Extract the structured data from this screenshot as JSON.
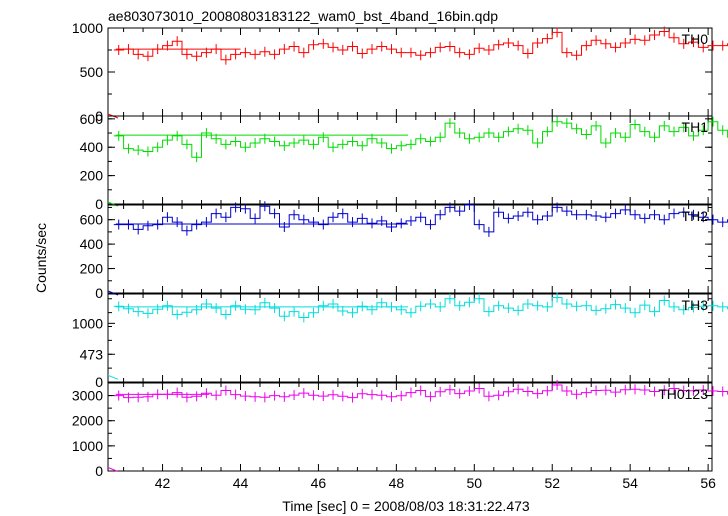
{
  "chart_data": {
    "type": "line",
    "title": "ae803073010_20080803183122_wam0_bst_4band_16bin.qdp",
    "xlabel": "Time [sec] 0 = 2008/08/03 18:31:22.473",
    "ylabel": "Counts/sec",
    "xlim": [
      40.6,
      56.1
    ],
    "x_ticks": [
      42,
      44,
      46,
      48,
      50,
      52,
      54,
      56
    ],
    "bin_width": 0.25,
    "x_start": 40.875,
    "panels": [
      {
        "name": "TH0",
        "color": "#ff0000",
        "ylim": [
          0,
          1000
        ],
        "y_ticks": [
          0,
          500,
          1000
        ],
        "fit_level": 760,
        "fit_x": [
          40.8,
          44.0
        ],
        "values": [
          750,
          760,
          700,
          680,
          760,
          800,
          850,
          700,
          680,
          720,
          760,
          640,
          700,
          720,
          700,
          730,
          700,
          760,
          790,
          720,
          810,
          820,
          780,
          750,
          790,
          710,
          760,
          790,
          760,
          720,
          720,
          690,
          720,
          780,
          790,
          720,
          700,
          770,
          750,
          810,
          830,
          800,
          710,
          830,
          880,
          950,
          720,
          690,
          800,
          860,
          820,
          780,
          830,
          870,
          860,
          920,
          960,
          890,
          820,
          840,
          780,
          800,
          800,
          820,
          820,
          830,
          820,
          840,
          800,
          860,
          880,
          830,
          840,
          780,
          800
        ],
        "point_errors": [
          40.83,
          0.03
        ]
      },
      {
        "name": "TH1",
        "color": "#00dd00",
        "ylim": [
          0,
          620
        ],
        "y_ticks": [
          0,
          200,
          400,
          600
        ],
        "fit_level": 485,
        "fit_x": [
          40.8,
          48.3
        ],
        "values": [
          480,
          390,
          380,
          370,
          400,
          450,
          480,
          420,
          330,
          500,
          460,
          420,
          440,
          400,
          430,
          460,
          440,
          410,
          430,
          450,
          420,
          470,
          400,
          420,
          440,
          410,
          460,
          430,
          390,
          410,
          420,
          460,
          440,
          470,
          570,
          500,
          460,
          470,
          500,
          470,
          510,
          530,
          520,
          430,
          510,
          580,
          570,
          530,
          490,
          550,
          430,
          500,
          470,
          560,
          510,
          470,
          550,
          510,
          540,
          480,
          520,
          580,
          520,
          470,
          360,
          420,
          480,
          450,
          550,
          510,
          580,
          490,
          420,
          480,
          520
        ],
        "point_errors": [
          40.83,
          0.03
        ]
      },
      {
        "name": "TH2",
        "color": "#0000cc",
        "ylim": [
          0,
          720
        ],
        "y_ticks": [
          0,
          200,
          400,
          600
        ],
        "fit_level": 565,
        "fit_x": [
          40.8,
          48.3
        ],
        "values": [
          560,
          560,
          520,
          550,
          560,
          620,
          580,
          510,
          560,
          580,
          650,
          620,
          700,
          690,
          610,
          710,
          650,
          540,
          640,
          600,
          580,
          560,
          620,
          650,
          580,
          610,
          570,
          590,
          540,
          570,
          590,
          620,
          560,
          640,
          700,
          670,
          720,
          560,
          500,
          660,
          610,
          630,
          660,
          600,
          630,
          700,
          670,
          640,
          640,
          630,
          620,
          650,
          680,
          640,
          610,
          640,
          600,
          650,
          660,
          640,
          620,
          600,
          580,
          600,
          560,
          640,
          620,
          570,
          700,
          640,
          610,
          620,
          560,
          640,
          610
        ],
        "point_errors": [
          40.83,
          0.03
        ]
      },
      {
        "name": "TH3",
        "color": "#00dddd",
        "ylim": [
          0,
          1500
        ],
        "y_ticks": [
          0,
          473,
          1000
        ],
        "fit_level": 1280,
        "fit_x": [
          40.8,
          48.3
        ],
        "values": [
          1290,
          1250,
          1200,
          1170,
          1240,
          1300,
          1150,
          1190,
          1230,
          1330,
          1260,
          1150,
          1300,
          1240,
          1230,
          1350,
          1260,
          1120,
          1200,
          1100,
          1180,
          1300,
          1330,
          1210,
          1180,
          1290,
          1230,
          1350,
          1280,
          1230,
          1180,
          1290,
          1330,
          1280,
          1420,
          1300,
          1360,
          1420,
          1200,
          1300,
          1260,
          1220,
          1330,
          1300,
          1280,
          1440,
          1330,
          1290,
          1300,
          1220,
          1250,
          1320,
          1260,
          1180,
          1310,
          1200,
          1390,
          1280,
          1230,
          1270,
          1290,
          1300,
          1280,
          1250,
          1370,
          1200,
          1290,
          1310,
          1320,
          1260,
          1300,
          1350,
          1240,
          1300,
          1320
        ],
        "point_errors": [
          40.83,
          80
        ]
      },
      {
        "name": "TH0123",
        "color": "#ee00ee",
        "ylim": [
          0,
          3500
        ],
        "y_ticks": [
          0,
          1000,
          2000,
          3000
        ],
        "fit_level": 3050,
        "fit_x": [
          40.8,
          43.2
        ],
        "values": [
          3000,
          2920,
          2930,
          2950,
          3050,
          3050,
          3120,
          2930,
          2970,
          3090,
          3010,
          3200,
          3040,
          2980,
          2950,
          2930,
          3000,
          2950,
          3020,
          3100,
          3010,
          2980,
          3030,
          2970,
          2920,
          3070,
          3040,
          3010,
          2950,
          2990,
          3120,
          3200,
          2960,
          3150,
          3230,
          3080,
          3180,
          3280,
          2970,
          3010,
          3150,
          3250,
          3160,
          3080,
          3190,
          3420,
          3180,
          3050,
          3120,
          3200,
          3210,
          3140,
          3230,
          3250,
          3220,
          3160,
          3210,
          3280,
          3200,
          3190,
          3220,
          3180,
          3160,
          3060,
          3160,
          3110,
          3130,
          3200,
          3130,
          3110,
          3240,
          3180,
          3120,
          3150,
          3140
        ],
        "point_errors": [
          40.83,
          60
        ]
      }
    ]
  }
}
